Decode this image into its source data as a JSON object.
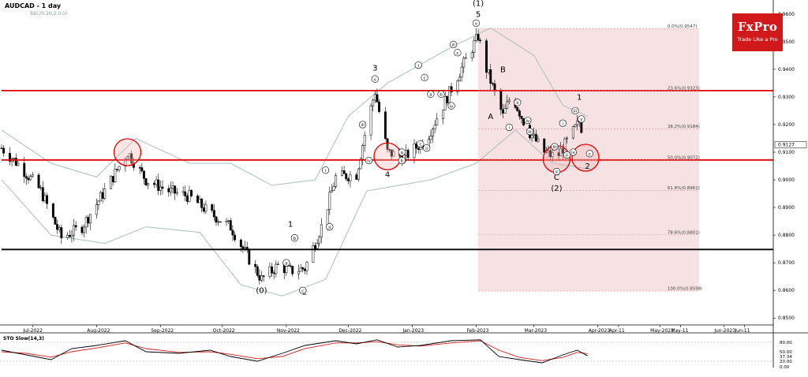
{
  "header": {
    "symbol_timeframe": "AUDCAD - 1 day",
    "indicator_label": "BB(20,20,2.0,0)"
  },
  "logo": {
    "brand": "FxPro",
    "tagline": "Trade Like a Pro"
  },
  "colors": {
    "support_resistance": "#e00000",
    "key_level": "#000000",
    "fib_zone": "#f2d6d6",
    "fib_line": "#e09090",
    "bollinger": "#a9bfbf",
    "candle": "#000000",
    "stoch_main": "#000000",
    "stoch_signal": "#d12020"
  },
  "chart_data": {
    "type": "candlestick",
    "title": "AUDCAD - 1 day",
    "y_range": [
      0.8475,
      0.9645
    ],
    "y_ticks": [
      "0.9600",
      "0.9500",
      "0.9400",
      "0.9300",
      "0.9200",
      "0.9100",
      "0.9000",
      "0.8900",
      "0.8800",
      "0.8700",
      "0.8600",
      "0.8500"
    ],
    "current_price": "0.9127",
    "x_labels": [
      "Jul-2022",
      "Aug-2022",
      "Sep-2022",
      "Oct-2022",
      "Nov-2022",
      "Dec-2022",
      "Jan-2023",
      "Feb-2023",
      "Mar-2023",
      "Apr-2023",
      "Apr-11",
      "May-2023",
      "May-11",
      "Jun-2023",
      "Jun-11"
    ],
    "close_path": [
      [
        "2022-06-16",
        0.9115
      ],
      [
        "2022-06-25",
        0.905
      ],
      [
        "2022-07-05",
        0.896
      ],
      [
        "2022-07-15",
        0.879
      ],
      [
        "2022-07-25",
        0.883
      ],
      [
        "2022-08-05",
        0.896
      ],
      [
        "2022-08-16",
        0.91
      ],
      [
        "2022-08-25",
        0.9
      ],
      [
        "2022-09-05",
        0.896
      ],
      [
        "2022-09-15",
        0.894
      ],
      [
        "2022-09-25",
        0.888
      ],
      [
        "2022-10-05",
        0.883
      ],
      [
        "2022-10-15",
        0.87
      ],
      [
        "2022-10-20",
        0.864
      ],
      [
        "2022-10-28",
        0.869
      ],
      [
        "2022-11-03",
        0.867
      ],
      [
        "2022-11-10",
        0.868
      ],
      [
        "2022-11-18",
        0.883
      ],
      [
        "2022-11-25",
        0.901
      ],
      [
        "2022-12-05",
        0.902
      ],
      [
        "2022-12-10",
        0.92
      ],
      [
        "2022-12-14",
        0.932
      ],
      [
        "2022-12-20",
        0.91
      ],
      [
        "2022-12-28",
        0.908
      ],
      [
        "2023-01-08",
        0.915
      ],
      [
        "2023-01-18",
        0.93
      ],
      [
        "2023-01-26",
        0.942
      ],
      [
        "2023-02-02",
        0.952
      ],
      [
        "2023-02-06",
        0.94
      ],
      [
        "2023-02-14",
        0.923
      ],
      [
        "2023-02-18",
        0.931
      ],
      [
        "2023-02-26",
        0.918
      ],
      [
        "2023-03-06",
        0.91
      ],
      [
        "2023-03-12",
        0.908
      ],
      [
        "2023-03-18",
        0.915
      ],
      [
        "2023-03-23",
        0.921
      ],
      [
        "2023-03-27",
        0.9127
      ]
    ],
    "bollinger_upper": [
      [
        "2022-06-16",
        0.918
      ],
      [
        "2022-07-10",
        0.906
      ],
      [
        "2022-08-01",
        0.901
      ],
      [
        "2022-08-20",
        0.915
      ],
      [
        "2022-09-15",
        0.906
      ],
      [
        "2022-10-05",
        0.906
      ],
      [
        "2022-10-25",
        0.898
      ],
      [
        "2022-11-15",
        0.9
      ],
      [
        "2022-12-01",
        0.923
      ],
      [
        "2022-12-20",
        0.935
      ],
      [
        "2023-01-20",
        0.948
      ],
      [
        "2023-02-08",
        0.955
      ],
      [
        "2023-03-01",
        0.945
      ],
      [
        "2023-03-15",
        0.927
      ],
      [
        "2023-03-27",
        0.923
      ]
    ],
    "bollinger_lower": [
      [
        "2022-06-16",
        0.9
      ],
      [
        "2022-07-10",
        0.88
      ],
      [
        "2022-08-05",
        0.877
      ],
      [
        "2022-08-25",
        0.883
      ],
      [
        "2022-09-20",
        0.881
      ],
      [
        "2022-10-10",
        0.862
      ],
      [
        "2022-10-30",
        0.858
      ],
      [
        "2022-11-20",
        0.864
      ],
      [
        "2022-12-10",
        0.896
      ],
      [
        "2023-01-10",
        0.9
      ],
      [
        "2023-02-01",
        0.906
      ],
      [
        "2023-02-20",
        0.918
      ],
      [
        "2023-03-10",
        0.906
      ],
      [
        "2023-03-27",
        0.904
      ]
    ],
    "horizontal_levels": [
      {
        "value": 0.9323,
        "color_key": "support_resistance"
      },
      {
        "value": 0.9072,
        "color_key": "support_resistance"
      },
      {
        "value": 0.8748,
        "color_key": "key_level"
      }
    ],
    "fibonacci": [
      {
        "label": "0.0%(0.9547)",
        "value": 0.9547
      },
      {
        "label": "23.6%(0.9323)",
        "value": 0.9323
      },
      {
        "label": "38.2%(0.9184)",
        "value": 0.9184
      },
      {
        "label": "50.0%(0.9072)",
        "value": 0.9072
      },
      {
        "label": "61.8%(0.8961)",
        "value": 0.8961
      },
      {
        "label": "78.6%(0.8801)",
        "value": 0.8801
      },
      {
        "label": "100.0%(0.8598)",
        "value": 0.8598
      }
    ],
    "fib_zone_dates": [
      "2023-02-02",
      "2023-05-20"
    ],
    "wave_labels": [
      {
        "text": "(1)",
        "date": "2023-02-02",
        "price": 0.963
      },
      {
        "text": "5",
        "date": "2023-02-02",
        "price": 0.959
      },
      {
        "text": "3",
        "date": "2022-12-14",
        "price": 0.9395
      },
      {
        "text": "4",
        "date": "2022-12-20",
        "price": 0.901
      },
      {
        "text": "1",
        "date": "2022-11-03",
        "price": 0.883
      },
      {
        "text": "2",
        "date": "2022-11-10",
        "price": 0.8585
      },
      {
        "text": "(0)",
        "date": "2022-10-20",
        "price": 0.859
      },
      {
        "text": "A",
        "date": "2023-02-08",
        "price": 0.922
      },
      {
        "text": "B",
        "date": "2023-02-14",
        "price": 0.939
      },
      {
        "text": "C",
        "date": "2023-03-12",
        "price": 0.9
      },
      {
        "text": "(2)",
        "date": "2023-03-12",
        "price": 0.896
      },
      {
        "text": "1",
        "date": "2023-03-23",
        "price": 0.929
      },
      {
        "text": "2",
        "date": "2023-03-27",
        "price": 0.904
      }
    ],
    "subwave_labels": [
      {
        "text": "a",
        "date": "2022-11-01",
        "price": 0.87
      },
      {
        "text": "b",
        "date": "2022-11-05",
        "price": 0.879
      },
      {
        "text": "c",
        "date": "2022-11-09",
        "price": 0.86
      },
      {
        "text": "i",
        "date": "2022-11-20",
        "price": 0.9035
      },
      {
        "text": "ii",
        "date": "2022-11-22",
        "price": 0.883
      },
      {
        "text": "iii",
        "date": "2022-12-08",
        "price": 0.92
      },
      {
        "text": "iv",
        "date": "2022-12-11",
        "price": 0.907
      },
      {
        "text": "v",
        "date": "2022-12-14",
        "price": 0.9365
      },
      {
        "text": "a",
        "date": "2022-12-27",
        "price": 0.91
      },
      {
        "text": "b",
        "date": "2022-12-27",
        "price": 0.907
      },
      {
        "text": "c",
        "date": "2023-01-05",
        "price": 0.913
      },
      {
        "text": "i",
        "date": "2023-01-04",
        "price": 0.9415
      },
      {
        "text": "ii",
        "date": "2023-01-08",
        "price": 0.9115
      },
      {
        "text": "c",
        "date": "2023-01-07",
        "price": 0.937
      },
      {
        "text": "a",
        "date": "2023-01-10",
        "price": 0.931
      },
      {
        "text": "b",
        "date": "2023-01-15",
        "price": 0.931
      },
      {
        "text": "iii",
        "date": "2023-01-21",
        "price": 0.949
      },
      {
        "text": "iv",
        "date": "2023-01-20",
        "price": 0.9268
      },
      {
        "text": "c",
        "date": "2023-01-23",
        "price": 0.946
      },
      {
        "text": "v",
        "date": "2023-02-01",
        "price": 0.9567
      },
      {
        "text": "i",
        "date": "2023-02-17",
        "price": 0.919
      },
      {
        "text": "ii",
        "date": "2023-02-21",
        "price": 0.928
      },
      {
        "text": "iii",
        "date": "2023-02-27",
        "price": 0.9175
      },
      {
        "text": "iv",
        "date": "2023-02-26",
        "price": 0.9215
      },
      {
        "text": "iii",
        "date": "2023-03-11",
        "price": 0.912
      },
      {
        "text": "v",
        "date": "2023-03-12",
        "price": 0.903
      },
      {
        "text": "i",
        "date": "2023-03-15",
        "price": 0.9205
      },
      {
        "text": "ii",
        "date": "2023-03-17",
        "price": 0.909
      },
      {
        "text": "iii",
        "date": "2023-03-21",
        "price": 0.925
      },
      {
        "text": "iv",
        "date": "2023-03-20",
        "price": 0.91
      },
      {
        "text": "v",
        "date": "2023-03-24",
        "price": 0.922
      },
      {
        "text": "c",
        "date": "2023-03-28",
        "price": 0.9095
      }
    ],
    "highlight_circles": [
      {
        "date": "2022-08-16",
        "price": 0.91
      },
      {
        "date": "2022-12-20",
        "price": 0.9085
      },
      {
        "date": "2023-03-12",
        "price": 0.9075
      },
      {
        "date": "2023-03-26",
        "price": 0.908
      }
    ],
    "stochastic": {
      "label": "STO Slow(14,3)",
      "levels": [
        "80.00",
        "20.00",
        "0.00"
      ],
      "values_label": "50.00",
      "main_current": "37.34",
      "signal_current": "43.59",
      "main": [
        [
          "2022-06-16",
          55
        ],
        [
          "2022-06-28",
          40
        ],
        [
          "2022-07-10",
          25
        ],
        [
          "2022-07-20",
          60
        ],
        [
          "2022-08-01",
          70
        ],
        [
          "2022-08-15",
          85
        ],
        [
          "2022-08-25",
          50
        ],
        [
          "2022-09-10",
          45
        ],
        [
          "2022-09-25",
          55
        ],
        [
          "2022-10-05",
          35
        ],
        [
          "2022-10-18",
          20
        ],
        [
          "2022-10-30",
          45
        ],
        [
          "2022-11-10",
          70
        ],
        [
          "2022-11-25",
          85
        ],
        [
          "2022-12-05",
          75
        ],
        [
          "2022-12-15",
          88
        ],
        [
          "2022-12-25",
          65
        ],
        [
          "2023-01-05",
          70
        ],
        [
          "2023-01-20",
          85
        ],
        [
          "2023-02-03",
          88
        ],
        [
          "2023-02-12",
          35
        ],
        [
          "2023-02-22",
          25
        ],
        [
          "2023-03-05",
          15
        ],
        [
          "2023-03-15",
          40
        ],
        [
          "2023-03-22",
          55
        ],
        [
          "2023-03-27",
          37
        ]
      ],
      "signal": [
        [
          "2022-06-16",
          50
        ],
        [
          "2022-06-28",
          45
        ],
        [
          "2022-07-10",
          33
        ],
        [
          "2022-07-20",
          50
        ],
        [
          "2022-08-01",
          62
        ],
        [
          "2022-08-15",
          78
        ],
        [
          "2022-08-25",
          60
        ],
        [
          "2022-09-10",
          48
        ],
        [
          "2022-09-25",
          50
        ],
        [
          "2022-10-05",
          42
        ],
        [
          "2022-10-18",
          28
        ],
        [
          "2022-10-30",
          35
        ],
        [
          "2022-11-10",
          60
        ],
        [
          "2022-11-25",
          78
        ],
        [
          "2022-12-05",
          78
        ],
        [
          "2022-12-15",
          82
        ],
        [
          "2022-12-25",
          72
        ],
        [
          "2023-01-05",
          68
        ],
        [
          "2023-01-20",
          78
        ],
        [
          "2023-02-03",
          85
        ],
        [
          "2023-02-12",
          55
        ],
        [
          "2023-02-22",
          32
        ],
        [
          "2023-03-05",
          22
        ],
        [
          "2023-03-15",
          32
        ],
        [
          "2023-03-22",
          48
        ],
        [
          "2023-03-27",
          44
        ]
      ]
    }
  }
}
